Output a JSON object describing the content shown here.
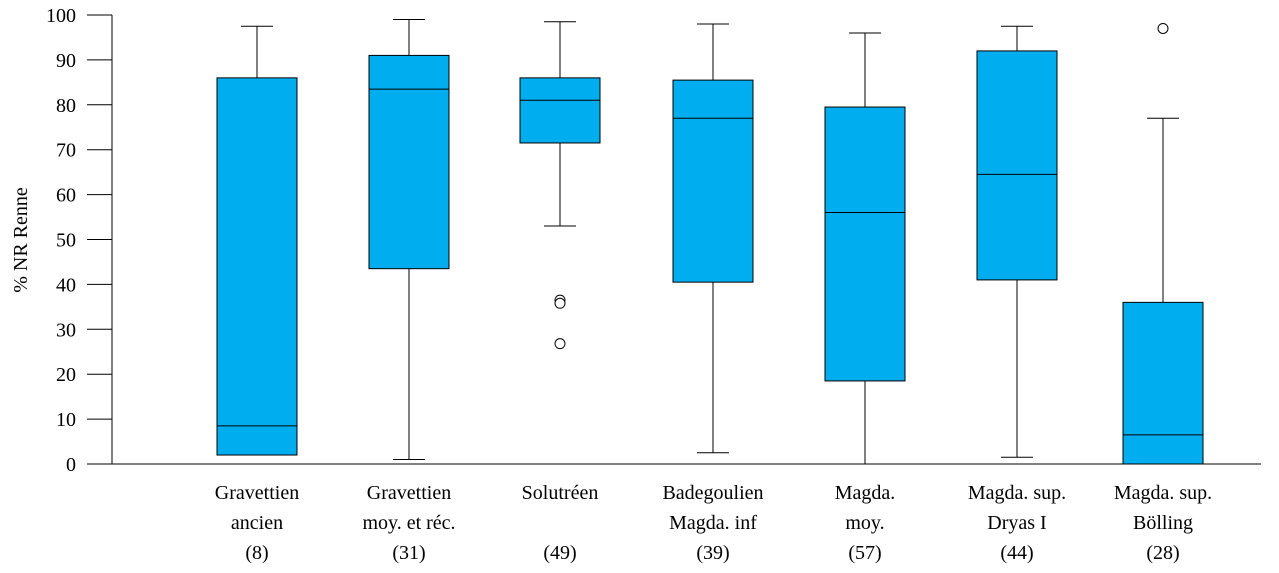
{
  "chart_data": {
    "type": "boxplot",
    "ylabel": "% NR Renne",
    "ylim": [
      0,
      100
    ],
    "yticks": [
      "0",
      "10",
      "20",
      "30",
      "40",
      "50",
      "60",
      "70",
      "80",
      "90",
      "100"
    ],
    "box_color": "#00aeef",
    "categories": [
      {
        "lines": [
          "Gravettien",
          "ancien"
        ],
        "n": "(8)",
        "min": 2,
        "q1": 2,
        "median": 8.5,
        "q3": 86,
        "max": 97.5,
        "outliers": []
      },
      {
        "lines": [
          "Gravettien",
          "moy. et réc."
        ],
        "n": "(31)",
        "min": 1,
        "q1": 43.5,
        "median": 83.5,
        "q3": 91,
        "max": 99,
        "outliers": []
      },
      {
        "lines": [
          "Solutréen",
          ""
        ],
        "n": "(49)",
        "min": 53,
        "q1": 71.5,
        "median": 81,
        "q3": 86,
        "max": 98.5,
        "outliers": [
          36.5,
          35.8,
          26.8
        ]
      },
      {
        "lines": [
          "Badegoulien",
          "Magda. inf"
        ],
        "n": "(39)",
        "min": 2.5,
        "q1": 40.5,
        "median": 77,
        "q3": 85.5,
        "max": 98,
        "outliers": []
      },
      {
        "lines": [
          "Magda.",
          "moy."
        ],
        "n": "(57)",
        "min": 0,
        "q1": 18.5,
        "median": 56,
        "q3": 79.5,
        "max": 96,
        "outliers": []
      },
      {
        "lines": [
          "Magda. sup.",
          "Dryas I"
        ],
        "n": "(44)",
        "min": 1.5,
        "q1": 41,
        "median": 64.5,
        "q3": 92,
        "max": 97.5,
        "outliers": []
      },
      {
        "lines": [
          "Magda. sup.",
          "Bölling"
        ],
        "n": "(28)",
        "min": 0,
        "q1": 0,
        "median": 6.5,
        "q3": 36,
        "max": 77,
        "outliers": [
          97
        ]
      }
    ]
  }
}
